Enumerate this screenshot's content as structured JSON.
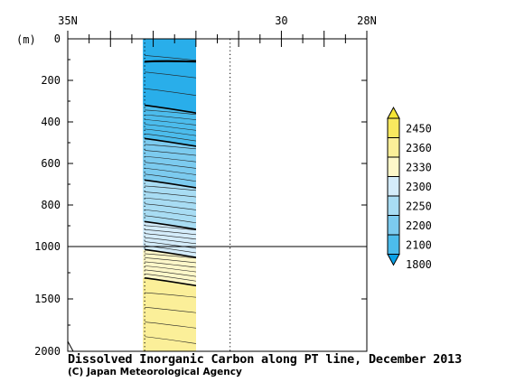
{
  "chart_data": {
    "type": "heatmap",
    "title": "Dissolved Inorganic Carbon along PT line, December 2013",
    "credit": "(C) Japan Meteorological Agency",
    "x_axis": {
      "label": "",
      "direction": "decreasing latitude",
      "ticks": [
        {
          "value": 35,
          "label": "35N"
        },
        {
          "value": 30,
          "label": "30"
        },
        {
          "value": 28,
          "label": "28N"
        }
      ],
      "range": [
        35,
        28
      ],
      "minor_step": 0.5
    },
    "y_axis": {
      "label": "(m)",
      "unit": "m",
      "inverted": true,
      "scale_break_at": 1000,
      "ticks": [
        0,
        200,
        400,
        600,
        800,
        1000,
        1500,
        2000
      ],
      "range": [
        0,
        2000
      ],
      "reference_line": 1000
    },
    "data_extent": {
      "lat_range": [
        33.2,
        31.2
      ],
      "depth_range": [
        0,
        2000
      ]
    },
    "colorbar": {
      "levels": [
        1800,
        2100,
        2200,
        2250,
        2300,
        2330,
        2360,
        2450
      ],
      "colors": [
        "#0aa0e6",
        "#29aeea",
        "#4cbcec",
        "#7ccbef",
        "#a8dcf3",
        "#d4ecfa",
        "#fdf7c9",
        "#fbef99",
        "#f8e95f",
        "#f5e536"
      ],
      "extend": "both"
    },
    "sections": [
      {
        "depth_top": 0,
        "depth_bottom": 320,
        "value_range": [
          1800,
          2100
        ]
      },
      {
        "depth_top": 320,
        "depth_bottom": 480,
        "value_range": [
          2100,
          2200
        ]
      },
      {
        "depth_top": 480,
        "depth_bottom": 680,
        "value_range": [
          2200,
          2250
        ]
      },
      {
        "depth_top": 680,
        "depth_bottom": 880,
        "value_range": [
          2250,
          2300
        ]
      },
      {
        "depth_top": 880,
        "depth_bottom": 1030,
        "value_range": [
          2300,
          2330
        ]
      },
      {
        "depth_top": 1030,
        "depth_bottom": 1300,
        "value_range": [
          2330,
          2360
        ]
      },
      {
        "depth_top": 1300,
        "depth_bottom": 2000,
        "value_range": [
          2360,
          2450
        ]
      }
    ]
  }
}
